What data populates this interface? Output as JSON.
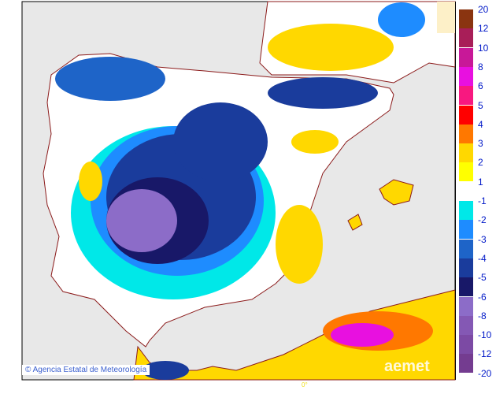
{
  "credit": "Agencia Estatal de Meteorología",
  "logo": "aemet",
  "meridian_label": "0°",
  "legend": {
    "top_labels": [
      "20",
      "12",
      "10",
      "8",
      "6",
      "5",
      "4",
      "3",
      "2",
      "1"
    ],
    "top_colors": [
      "#8a3410",
      "#a81e58",
      "#c81898",
      "#e810e0",
      "#f81880",
      "#ff0000",
      "#ff7800",
      "#ffd800",
      "#ffff00"
    ],
    "bottom_labels": [
      "-1",
      "-2",
      "-3",
      "-4",
      "-5",
      "-6",
      "-8",
      "-10",
      "-12",
      "-20"
    ],
    "bottom_colors": [
      "#00e8e8",
      "#1e8cff",
      "#1e64c8",
      "#1a3c9c",
      "#181868",
      "#8c6cc8",
      "#8458b4",
      "#7c4aa4",
      "#743c90"
    ]
  },
  "colors": {
    "sea": "#e8e8e8",
    "land": "#ffffff",
    "borders": "#8b1a1a"
  }
}
